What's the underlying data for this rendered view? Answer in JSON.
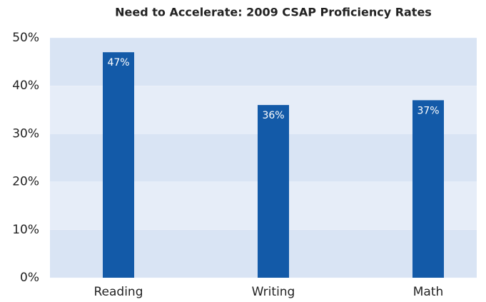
{
  "chart_data": {
    "type": "bar",
    "title": "Need to Accelerate: 2009 CSAP Proficiency Rates",
    "categories": [
      "Reading",
      "Writing",
      "Math"
    ],
    "values": [
      47,
      36,
      37
    ],
    "value_labels": [
      "47%",
      "36%",
      "37%"
    ],
    "color": "#135aa8",
    "ylim": [
      0,
      50
    ],
    "yticks": [
      {
        "value": 0,
        "label": "0%"
      },
      {
        "value": 10,
        "label": "10%"
      },
      {
        "value": 20,
        "label": "20%"
      },
      {
        "value": 30,
        "label": "30%"
      },
      {
        "value": 40,
        "label": "40%"
      },
      {
        "value": 50,
        "label": "50%"
      }
    ],
    "grid": true
  }
}
